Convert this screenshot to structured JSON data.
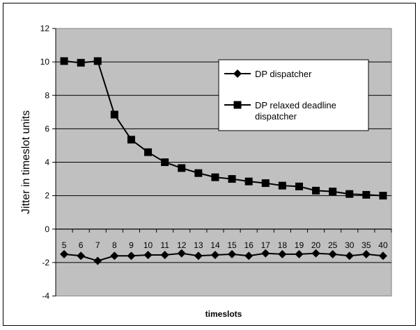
{
  "chart_data": {
    "type": "line",
    "title": "",
    "xlabel": "timeslots",
    "ylabel": "Jitter in timeslot units",
    "categories": [
      "5",
      "6",
      "7",
      "8",
      "9",
      "10",
      "11",
      "12",
      "13",
      "14",
      "15",
      "16",
      "17",
      "18",
      "19",
      "20",
      "25",
      "30",
      "35",
      "40"
    ],
    "ylim": [
      -4,
      12
    ],
    "yticks": [
      -4,
      -2,
      0,
      2,
      4,
      6,
      8,
      10,
      12
    ],
    "grid": true,
    "legend_position": "right",
    "series": [
      {
        "name": "DP dispatcher",
        "marker": "diamond",
        "values": [
          -1.5,
          -1.6,
          -1.9,
          -1.6,
          -1.6,
          -1.55,
          -1.55,
          -1.45,
          -1.6,
          -1.55,
          -1.5,
          -1.6,
          -1.45,
          -1.5,
          -1.5,
          -1.45,
          -1.5,
          -1.6,
          -1.5,
          -1.6
        ]
      },
      {
        "name": "DP relaxed deadline dispatcher",
        "marker": "square",
        "values": [
          10.05,
          9.95,
          10.05,
          6.85,
          5.35,
          4.6,
          4.0,
          3.65,
          3.35,
          3.1,
          3.0,
          2.85,
          2.75,
          2.6,
          2.55,
          2.3,
          2.25,
          2.1,
          2.05,
          2.0
        ]
      }
    ],
    "colors": {
      "plot_background": "#c0c0c0",
      "series": "#000000"
    }
  }
}
